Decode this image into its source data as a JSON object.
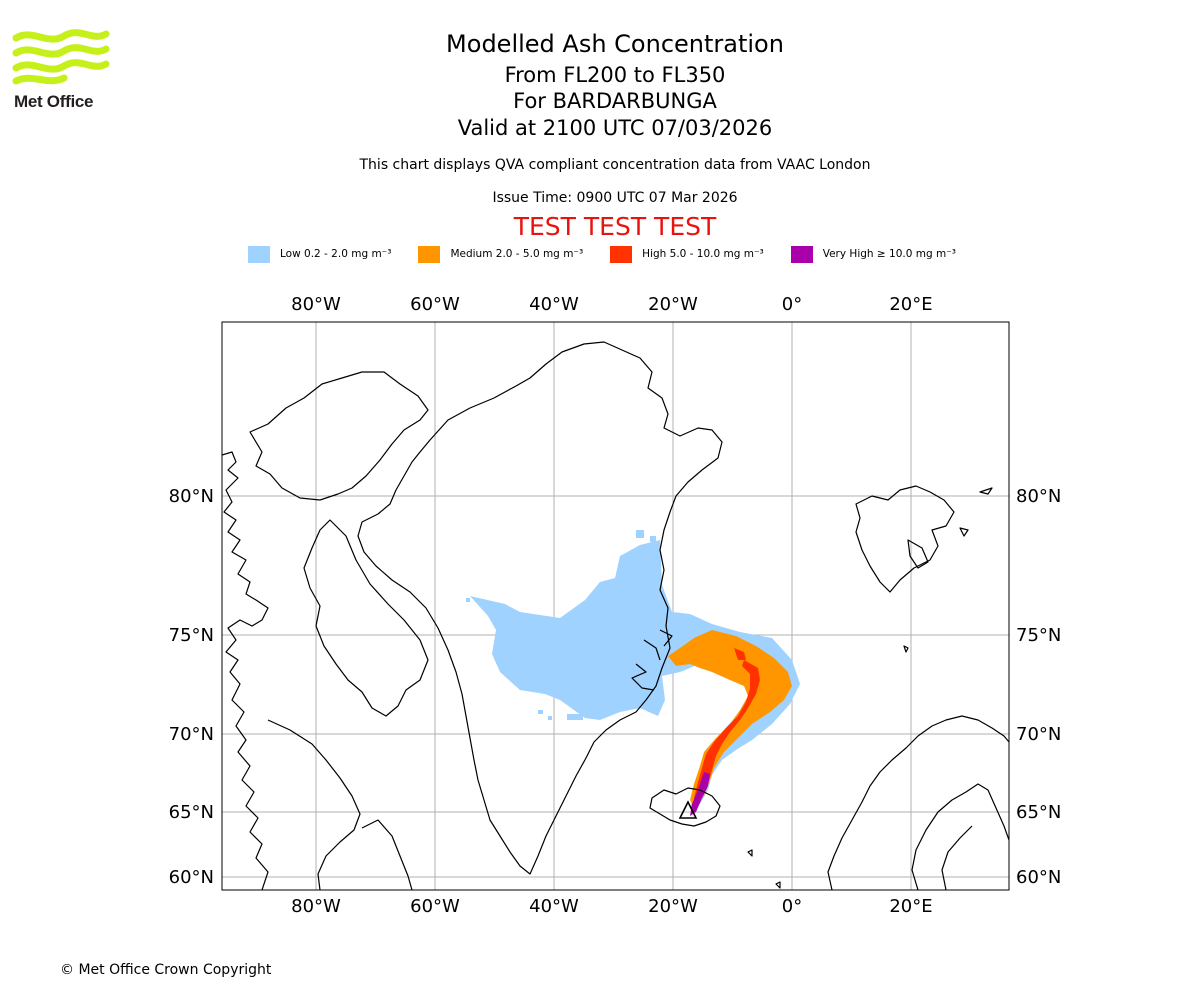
{
  "logo": {
    "text": "Met Office",
    "color": "#c6f01a"
  },
  "header": {
    "title": "Modelled Ash Concentration",
    "levels": "From FL200 to FL350",
    "volcano": "For BARDARBUNGA",
    "valid": "Valid at 2100 UTC 07/03/2026",
    "note": "This chart displays QVA compliant concentration data from VAAC London",
    "issue": "Issue Time: 0900 UTC 07 Mar 2026",
    "test": "TEST TEST TEST"
  },
  "legend": [
    {
      "label": "Low 0.2 - 2.0 mg m⁻³",
      "color": "#a0d2ff"
    },
    {
      "label": "Medium 2.0 - 5.0 mg m⁻³",
      "color": "#ff9600"
    },
    {
      "label": "High 5.0 - 10.0 mg m⁻³",
      "color": "#ff3200"
    },
    {
      "label": "Very High  ≥  10.0 mg m⁻³",
      "color": "#aa00aa"
    }
  ],
  "map": {
    "lon_labels": [
      "80°W",
      "60°W",
      "40°W",
      "20°W",
      "0°",
      "20°E"
    ],
    "lat_labels": [
      "80°N",
      "75°N",
      "70°N",
      "65°N",
      "60°N"
    ],
    "gridline_color": "#b0b0b0",
    "coast_color": "#000000"
  },
  "footer": {
    "copyright": "© Met Office Crown Copyright"
  }
}
